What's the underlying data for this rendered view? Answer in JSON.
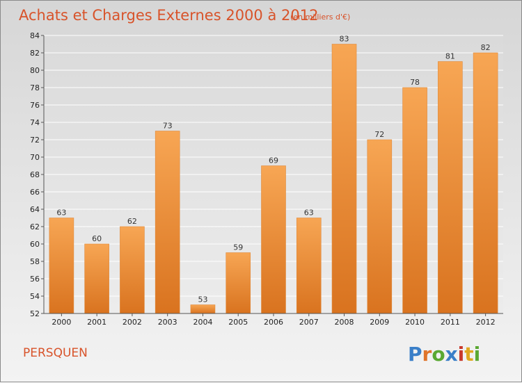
{
  "chart_data": {
    "type": "bar",
    "title": "Achats et Charges Externes 2000 à 2012",
    "subtitle": "(en milliers d'€)",
    "xlabel": "",
    "ylabel": "",
    "categories": [
      "2000",
      "2001",
      "2002",
      "2003",
      "2004",
      "2005",
      "2006",
      "2007",
      "2008",
      "2009",
      "2010",
      "2011",
      "2012"
    ],
    "values": [
      63,
      60,
      62,
      73,
      53,
      59,
      69,
      63,
      83,
      72,
      78,
      81,
      82
    ],
    "ylim": [
      52,
      84
    ],
    "yticks": [
      52,
      54,
      56,
      58,
      60,
      62,
      64,
      66,
      68,
      70,
      72,
      74,
      76,
      78,
      80,
      82,
      84
    ],
    "grid": true,
    "colors": {
      "bar_top": "#f7a654",
      "bar_bottom": "#d9731f",
      "grid": "#ffffff",
      "accent": "#d8532a"
    }
  },
  "footer": {
    "commune": "PERSQUEN",
    "logo_text": "Proxiti"
  }
}
